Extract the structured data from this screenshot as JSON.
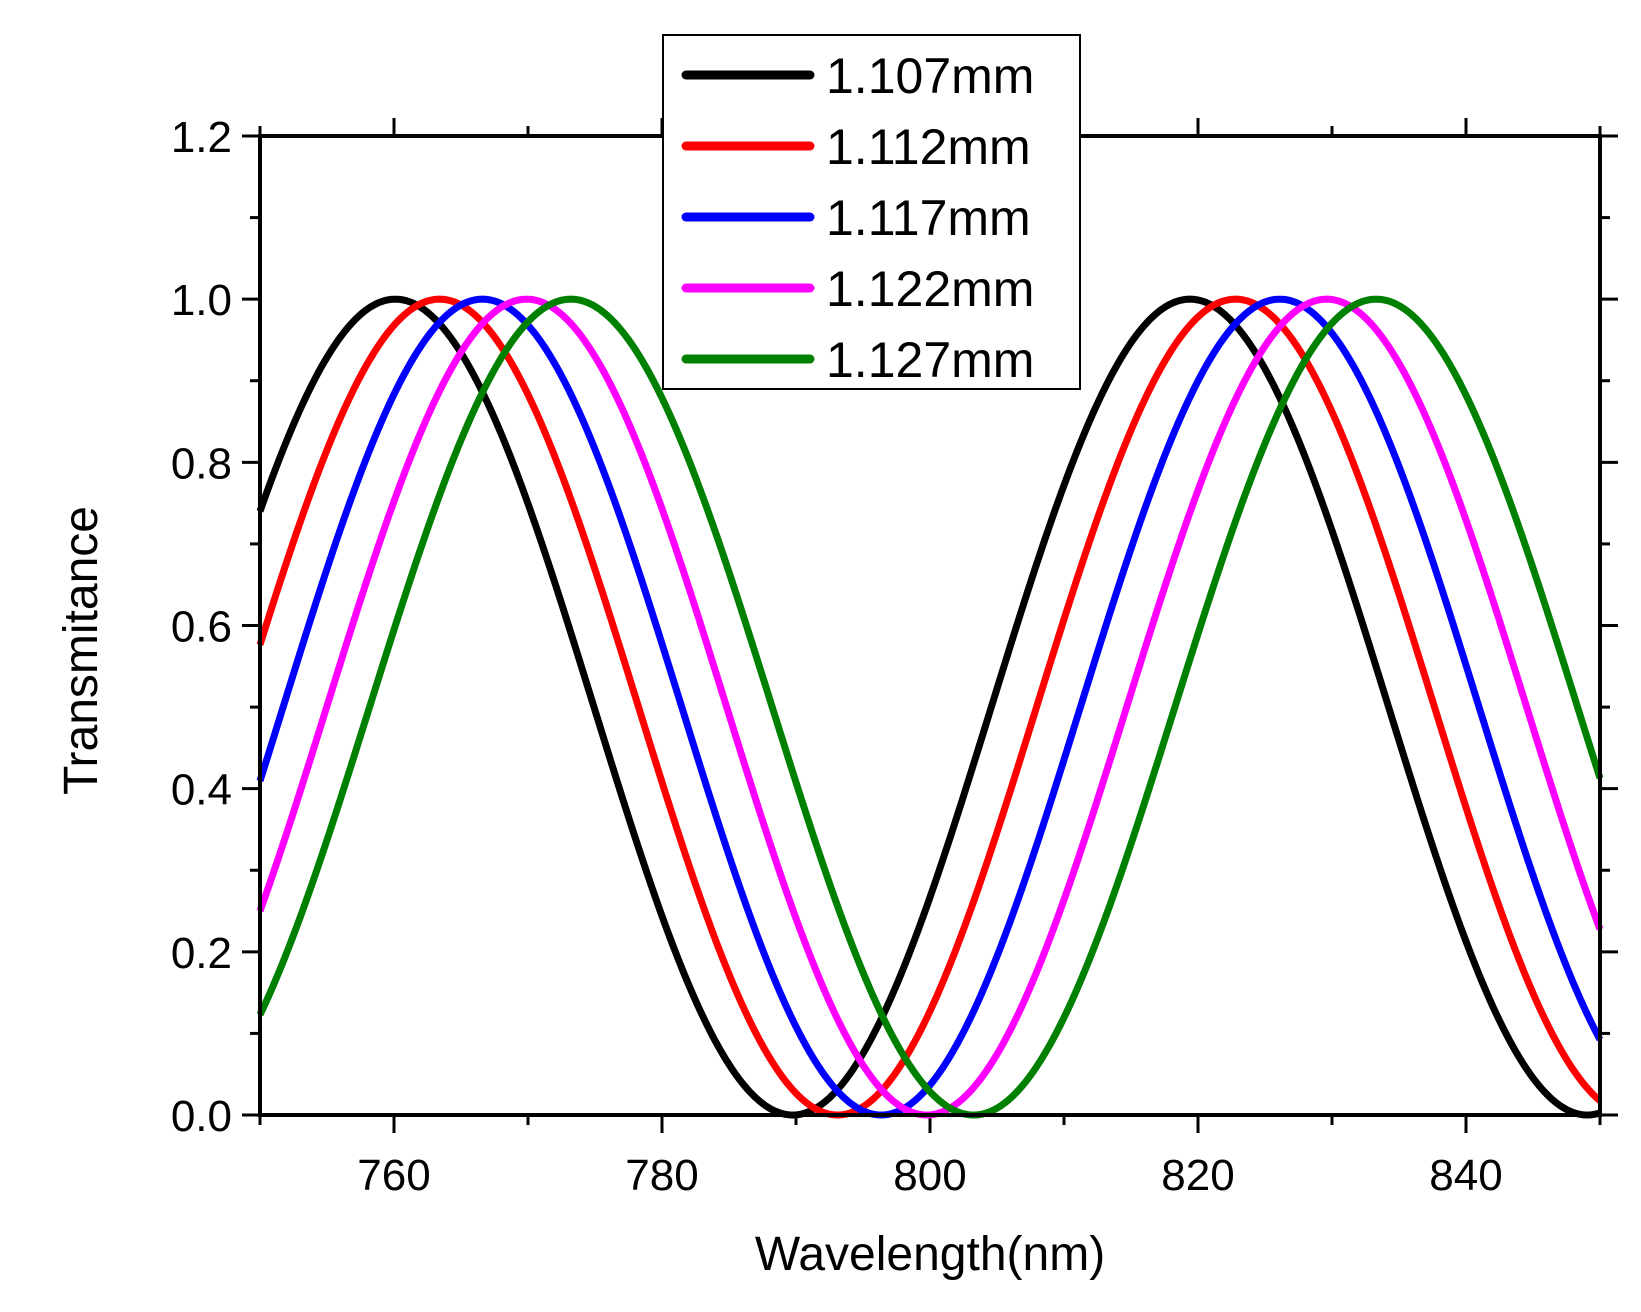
{
  "chart_data": {
    "type": "line",
    "title": "",
    "xlabel": "Wavelength(nm)",
    "ylabel": "Transmitance",
    "xlim": [
      750,
      850
    ],
    "ylim": [
      0.0,
      1.2
    ],
    "x_ticks": [
      "760",
      "780",
      "800",
      "820",
      "840"
    ],
    "y_ticks": [
      "0.0",
      "0.2",
      "0.4",
      "0.6",
      "0.8",
      "1.0",
      "1.2"
    ],
    "legend_position": "top-center",
    "series": [
      {
        "name": "1.107mm",
        "color": "#000000",
        "peaks_nm": [
          760.1,
          819.4
        ]
      },
      {
        "name": "1.112mm",
        "color": "#ff0000",
        "peaks_nm": [
          763.4,
          822.8
        ]
      },
      {
        "name": "1.117mm",
        "color": "#0000ff",
        "peaks_nm": [
          766.6,
          826.1
        ]
      },
      {
        "name": "1.122mm",
        "color": "#ff00ff",
        "peaks_nm": [
          769.9,
          829.6
        ]
      },
      {
        "name": "1.127mm",
        "color": "#008000",
        "peaks_nm": [
          773.2,
          833.3
        ]
      }
    ]
  }
}
